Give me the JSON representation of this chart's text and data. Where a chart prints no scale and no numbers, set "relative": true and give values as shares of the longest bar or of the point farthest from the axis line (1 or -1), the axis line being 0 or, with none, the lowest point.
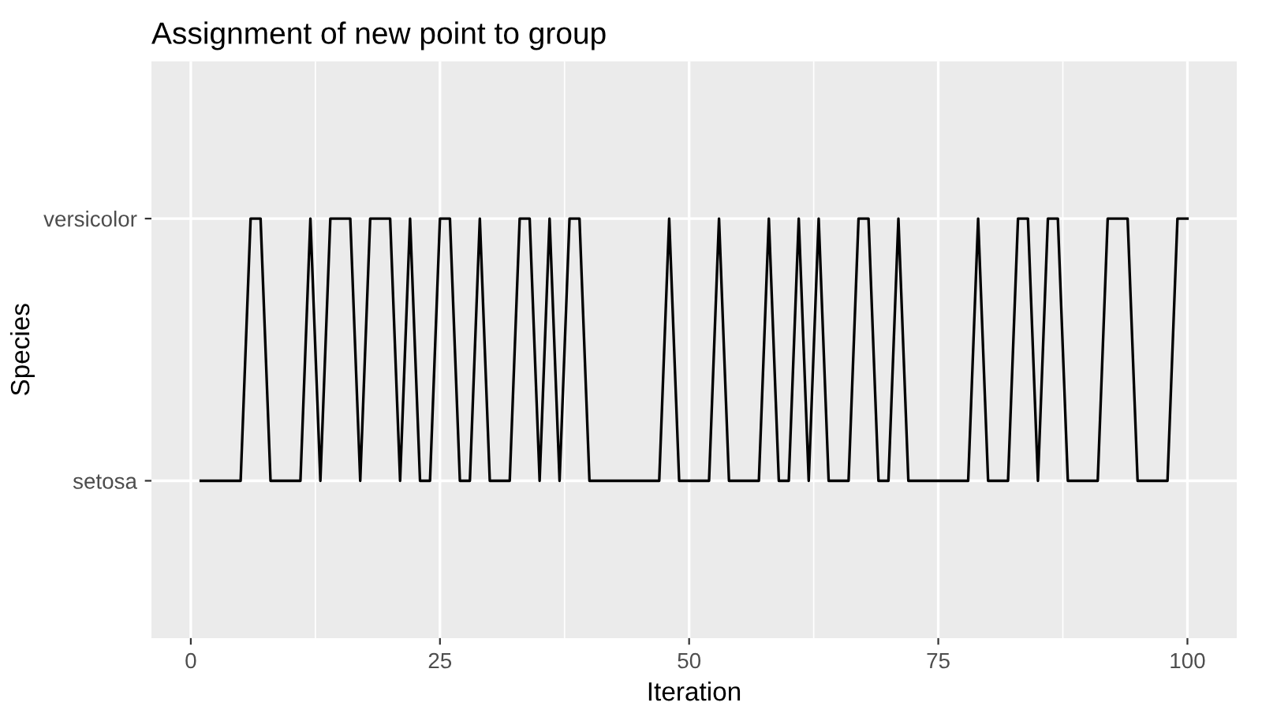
{
  "chart_data": {
    "type": "line",
    "title": "Assignment of new point to group",
    "xlabel": "Iteration",
    "ylabel": "Species",
    "relative": true,
    "x": [
      1,
      2,
      3,
      4,
      5,
      6,
      7,
      8,
      9,
      10,
      11,
      12,
      13,
      14,
      15,
      16,
      17,
      18,
      19,
      20,
      21,
      22,
      23,
      24,
      25,
      26,
      27,
      28,
      29,
      30,
      31,
      32,
      33,
      34,
      35,
      36,
      37,
      38,
      39,
      40,
      41,
      42,
      43,
      44,
      45,
      46,
      47,
      48,
      49,
      50,
      51,
      52,
      53,
      54,
      55,
      56,
      57,
      58,
      59,
      60,
      61,
      62,
      63,
      64,
      65,
      66,
      67,
      68,
      69,
      70,
      71,
      72,
      73,
      74,
      75,
      76,
      77,
      78,
      79,
      80,
      81,
      82,
      83,
      84,
      85,
      86,
      87,
      88,
      89,
      90,
      91,
      92,
      93,
      94,
      95,
      96,
      97,
      98,
      99,
      100
    ],
    "series": [
      {
        "color": "#000000",
        "values": [
          0,
          0,
          0,
          0,
          0,
          1,
          1,
          0,
          0,
          0,
          0,
          1,
          0,
          1,
          1,
          1,
          0,
          1,
          1,
          1,
          0,
          1,
          0,
          0,
          1,
          1,
          0,
          0,
          1,
          0,
          0,
          0,
          1,
          1,
          0,
          1,
          0,
          1,
          1,
          0,
          0,
          0,
          0,
          0,
          0,
          0,
          0,
          1,
          0,
          0,
          0,
          0,
          1,
          0,
          0,
          0,
          0,
          1,
          0,
          0,
          1,
          0,
          1,
          0,
          0,
          0,
          1,
          1,
          0,
          0,
          1,
          0,
          0,
          0,
          0,
          0,
          0,
          0,
          1,
          0,
          0,
          0,
          1,
          1,
          0,
          1,
          1,
          0,
          0,
          0,
          0,
          1,
          1,
          1,
          0,
          0,
          0,
          0,
          1,
          1
        ]
      }
    ],
    "annotations": [
      "setosa",
      "versicolor"
    ],
    "xlim": [
      -3.95,
      104.95
    ],
    "xticks": [
      0,
      25,
      50,
      75,
      100
    ],
    "grid": true,
    "line_style": "solid",
    "marker": "none"
  }
}
